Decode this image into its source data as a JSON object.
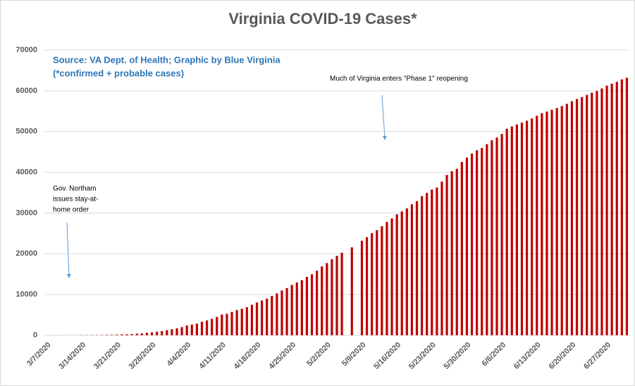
{
  "chart_data": {
    "type": "bar",
    "title": "Virginia COVID-19 Cases*",
    "subtitle": [
      "Source: VA Dept. of Health; Graphic by Blue Virginia",
      "(*confirmed + probable cases)"
    ],
    "annotations": [
      {
        "lines": [
          "Gov. Northam",
          "issues stay-at-",
          "home order"
        ]
      },
      {
        "lines": [
          "Much of Virginia enters \"Phase 1\" reopening"
        ]
      }
    ],
    "categories": [
      "3/7/2020",
      null,
      null,
      null,
      null,
      null,
      null,
      "3/14/2020",
      null,
      null,
      null,
      null,
      null,
      null,
      "3/21/2020",
      null,
      null,
      null,
      null,
      null,
      null,
      "3/28/2020",
      null,
      null,
      null,
      null,
      null,
      null,
      "4/4/2020",
      null,
      null,
      null,
      null,
      null,
      null,
      "4/11/2020",
      null,
      null,
      null,
      null,
      null,
      null,
      "4/18/2020",
      null,
      null,
      null,
      null,
      null,
      null,
      "4/25/2020",
      null,
      null,
      null,
      null,
      null,
      null,
      "5/2/2020",
      null,
      null,
      null,
      null,
      null,
      null,
      "5/9/2020",
      null,
      null,
      null,
      null,
      null,
      null,
      "5/16/2020",
      null,
      null,
      null,
      null,
      null,
      null,
      "5/23/2020",
      null,
      null,
      null,
      null,
      null,
      null,
      "5/30/2020",
      null,
      null,
      null,
      null,
      null,
      null,
      "6/6/2020",
      null,
      null,
      null,
      null,
      null,
      null,
      "6/13/2020",
      null,
      null,
      null,
      null,
      null,
      null,
      "6/20/2020",
      null,
      null,
      null,
      null,
      null,
      null,
      "6/27/2020",
      null,
      null,
      null,
      null
    ],
    "values": [
      2,
      2,
      2,
      8,
      9,
      17,
      30,
      41,
      45,
      51,
      67,
      77,
      94,
      114,
      152,
      219,
      254,
      290,
      391,
      460,
      604,
      739,
      890,
      1020,
      1250,
      1484,
      1706,
      2012,
      2407,
      2637,
      2878,
      3333,
      3645,
      4042,
      4509,
      5077,
      5274,
      5747,
      6182,
      6500,
      6889,
      7491,
      8053,
      8537,
      8990,
      9630,
      10266,
      10998,
      11594,
      12366,
      12970,
      13535,
      14339,
      14961,
      15846,
      16901,
      17731,
      18671,
      19492,
      20256,
      null,
      21570,
      null,
      23196,
      24081,
      25070,
      25800,
      26746,
      27813,
      28672,
      29683,
      30388,
      31140,
      32145,
      32908,
      34137,
      34950,
      35749,
      36244,
      37727,
      39342,
      40249,
      40849,
      42533,
      43611,
      44607,
      45398,
      45960,
      46905,
      47856,
      48532,
      49397,
      50681,
      51251,
      51738,
      52177,
      52647,
      53211,
      53869,
      54506,
      54886,
      55331,
      55775,
      56238,
      56793,
      57443,
      57994,
      58465,
      58994,
      59514,
      59946,
      60570,
      61247,
      61736,
      62189,
      62787,
      63203
    ],
    "color": "#c00000",
    "ylim": [
      0,
      70000
    ],
    "yticks": [
      0,
      10000,
      20000,
      30000,
      40000,
      50000,
      60000,
      70000
    ],
    "grid": true
  }
}
